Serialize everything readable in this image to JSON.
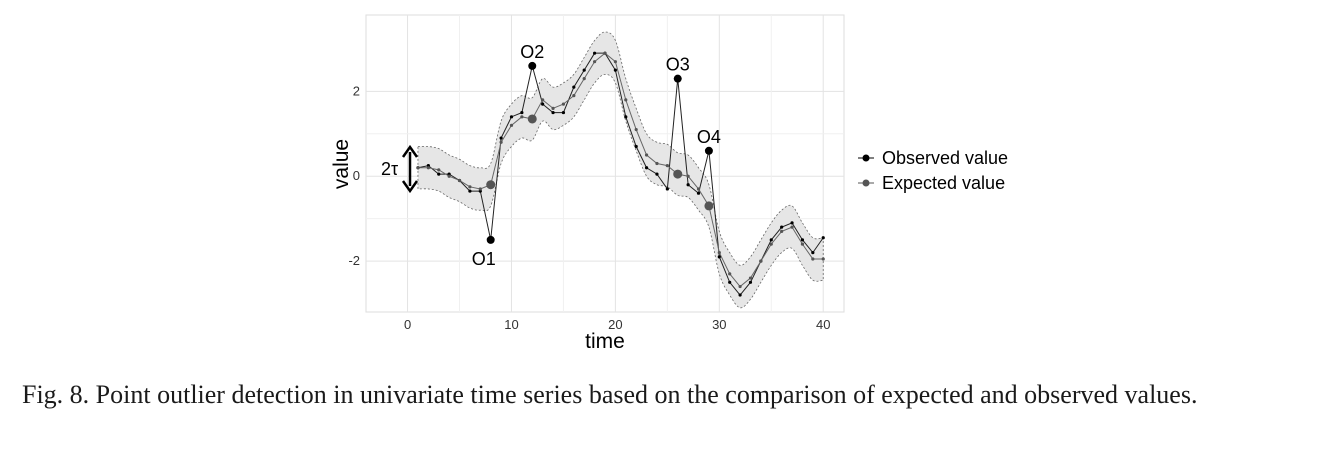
{
  "caption": "Fig. 8.  Point outlier detection in univariate time series based on the comparison of expected and observed values.",
  "chart_data": {
    "type": "line",
    "xlabel": "time",
    "ylabel": "value",
    "xlim": [
      -4,
      42
    ],
    "ylim": [
      -3.2,
      3.8
    ],
    "xticks": [
      0,
      10,
      20,
      30,
      40
    ],
    "yticks": [
      -2,
      0,
      2
    ],
    "grid": true,
    "legend_position": "right",
    "legend": [
      "Observed value",
      "Expected value"
    ],
    "band_label": "2τ",
    "tau": 0.5,
    "x": [
      1,
      2,
      3,
      4,
      5,
      6,
      7,
      8,
      9,
      10,
      11,
      12,
      13,
      14,
      15,
      16,
      17,
      18,
      19,
      20,
      21,
      22,
      23,
      24,
      25,
      26,
      27,
      28,
      29,
      30,
      31,
      32,
      33,
      34,
      35,
      36,
      37,
      38,
      39,
      40
    ],
    "series": [
      {
        "name": "Observed value",
        "color": "#000000",
        "values": [
          0.2,
          0.25,
          0.05,
          0.05,
          -0.1,
          -0.35,
          -0.35,
          -1.5,
          0.9,
          1.4,
          1.5,
          2.6,
          1.7,
          1.5,
          1.5,
          2.1,
          2.5,
          2.9,
          2.9,
          2.5,
          1.4,
          0.7,
          0.2,
          0.05,
          -0.3,
          2.3,
          -0.2,
          -0.4,
          0.6,
          -1.9,
          -2.5,
          -2.8,
          -2.5,
          -2.0,
          -1.5,
          -1.2,
          -1.1,
          -1.5,
          -1.8,
          -1.45
        ]
      },
      {
        "name": "Expected value",
        "color": "#555555",
        "values": [
          0.2,
          0.2,
          0.15,
          0.0,
          -0.1,
          -0.25,
          -0.3,
          -0.2,
          0.8,
          1.2,
          1.4,
          1.35,
          1.8,
          1.6,
          1.7,
          1.9,
          2.3,
          2.7,
          2.9,
          2.7,
          1.8,
          1.1,
          0.5,
          0.3,
          0.25,
          0.05,
          0.0,
          -0.3,
          -0.7,
          -1.8,
          -2.3,
          -2.6,
          -2.4,
          -2.0,
          -1.6,
          -1.3,
          -1.2,
          -1.6,
          -1.95,
          -1.95
        ]
      }
    ],
    "annotations": [
      {
        "label": "O1",
        "x": 8,
        "observed": -1.5,
        "expected": -0.2
      },
      {
        "label": "O2",
        "x": 12,
        "observed": 2.6,
        "expected": 1.35
      },
      {
        "label": "O3",
        "x": 26,
        "observed": 2.3,
        "expected": 0.05
      },
      {
        "label": "O4",
        "x": 29,
        "observed": 0.6,
        "expected": -0.7
      }
    ]
  }
}
